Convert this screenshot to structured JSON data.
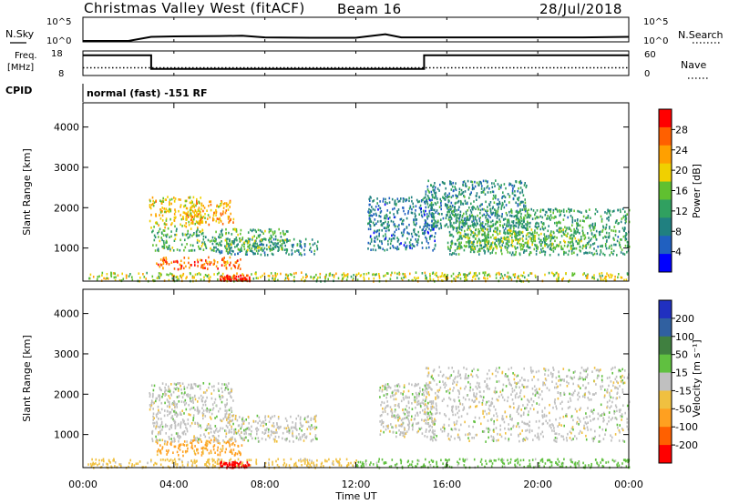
{
  "header": {
    "station": "Christmas Valley West (fitACF)",
    "beam": "Beam 16",
    "date": "28/Jul/2018"
  },
  "labels": {
    "nsky": "N.Sky",
    "nsearch": "N.Search",
    "freq_line1": "Freq.",
    "freq_line2": "[MHz]",
    "nave": "Nave",
    "cpid": "CPID",
    "cpid_value": "normal (fast) -151 RF",
    "xlabel": "Time UT",
    "ylabel_top": "Slant Range [km]",
    "ylabel_bottom": "Slant Range [km]",
    "power_label": "Power [dB]",
    "velocity_label": "Velocity [m s⁻¹]"
  },
  "noise_axis": {
    "top": "10^5",
    "bottom": "10^0"
  },
  "freq_axis": {
    "left_ticks": [
      "18",
      "8"
    ],
    "right_ticks": [
      "60",
      "0"
    ]
  },
  "colors": {
    "power": [
      "#0000ff",
      "#2060c0",
      "#208080",
      "#30a060",
      "#60c030",
      "#f0d000",
      "#ffa000",
      "#ff6000",
      "#ff0000"
    ],
    "velocity": [
      "#2030c0",
      "#3060a0",
      "#408040",
      "#60c040",
      "#c0c0c0",
      "#f0c040",
      "#ffa020",
      "#ff6000",
      "#ff0000"
    ]
  },
  "chart_data": [
    {
      "type": "line",
      "name": "noise",
      "x": [
        0,
        2,
        3,
        4,
        6,
        7,
        8,
        10,
        12,
        13.3,
        14,
        16,
        18,
        20,
        22,
        24
      ],
      "series": [
        {
          "name": "N.Sky",
          "values": [
            1,
            1,
            8,
            10,
            12,
            14,
            6,
            5,
            5,
            30,
            6,
            6,
            6,
            6,
            6,
            8
          ]
        }
      ]
    },
    {
      "type": "line",
      "name": "frequency",
      "x": [
        0,
        3.0,
        3.0,
        15.0,
        15.0,
        24
      ],
      "series": [
        {
          "name": "Freq.",
          "values": [
            16.5,
            16.5,
            10.5,
            10.5,
            16.5,
            16.5
          ]
        },
        {
          "name": "Nave",
          "values": [
            18,
            18,
            18,
            18,
            18,
            18
          ]
        }
      ]
    },
    {
      "type": "heatmap",
      "name": "power",
      "xlabel": "Time UT",
      "ylabel": "Slant Range [km]",
      "x_ticks": [
        "00:00",
        "04:00",
        "08:00",
        "12:00",
        "16:00",
        "20:00",
        "00:00"
      ],
      "xlim": [
        0,
        24
      ],
      "ylim": [
        180,
        4600
      ],
      "y_ticks": [
        1000,
        2000,
        3000,
        4000
      ],
      "colorbar": {
        "label": "Power [dB]",
        "ticks": [
          4,
          8,
          12,
          16,
          20,
          24,
          28
        ],
        "range": [
          0,
          32
        ]
      },
      "regions": [
        {
          "t0": 2.9,
          "t1": 5.2,
          "r0": 1500,
          "r1": 2300,
          "level": 20
        },
        {
          "t0": 4.5,
          "t1": 6.6,
          "r0": 1600,
          "r1": 2200,
          "level": 22
        },
        {
          "t0": 3.2,
          "t1": 7.0,
          "r0": 500,
          "r1": 800,
          "level": 26
        },
        {
          "t0": 5.8,
          "t1": 10.3,
          "r0": 850,
          "r1": 1250,
          "level": 10
        },
        {
          "t0": 3.0,
          "t1": 9.0,
          "r0": 950,
          "r1": 1500,
          "level": 14
        },
        {
          "t0": 0.2,
          "t1": 24,
          "r0": 200,
          "r1": 420,
          "level": 18
        },
        {
          "t0": 6.0,
          "t1": 7.3,
          "r0": 200,
          "r1": 350,
          "level": 30
        },
        {
          "t0": 12.5,
          "t1": 15.5,
          "r0": 950,
          "r1": 2300,
          "level": 8
        },
        {
          "t0": 15.0,
          "t1": 19.5,
          "r0": 1500,
          "r1": 2700,
          "level": 10
        },
        {
          "t0": 16.0,
          "t1": 24,
          "r0": 850,
          "r1": 2000,
          "level": 12
        },
        {
          "t0": 16.5,
          "t1": 22.0,
          "r0": 1000,
          "r1": 1500,
          "level": 16
        }
      ]
    },
    {
      "type": "heatmap",
      "name": "velocity",
      "xlabel": "Time UT",
      "ylabel": "Slant Range [km]",
      "x_ticks": [
        "00:00",
        "04:00",
        "08:00",
        "12:00",
        "16:00",
        "20:00",
        "00:00"
      ],
      "xlim": [
        0,
        24
      ],
      "ylim": [
        180,
        4600
      ],
      "y_ticks": [
        1000,
        2000,
        3000,
        4000
      ],
      "colorbar": {
        "label": "Velocity [m s⁻¹]",
        "ticks": [
          200,
          100,
          50,
          15,
          -15,
          -50,
          -100,
          -200
        ]
      },
      "regions": [
        {
          "t0": 2.9,
          "t1": 6.6,
          "r0": 1500,
          "r1": 2300,
          "level": 0
        },
        {
          "t0": 3.2,
          "t1": 7.0,
          "r0": 500,
          "r1": 900,
          "level": -60
        },
        {
          "t0": 3.0,
          "t1": 10.3,
          "r0": 850,
          "r1": 1500,
          "level": 0
        },
        {
          "t0": 0.2,
          "t1": 12.0,
          "r0": 200,
          "r1": 420,
          "level": -30
        },
        {
          "t0": 12.0,
          "t1": 24,
          "r0": 200,
          "r1": 420,
          "level": 30
        },
        {
          "t0": 6.0,
          "t1": 7.3,
          "r0": 200,
          "r1": 350,
          "level": -250
        },
        {
          "t0": 13.0,
          "t1": 15.5,
          "r0": 950,
          "r1": 2300,
          "level": 0
        },
        {
          "t0": 15.0,
          "t1": 24,
          "r0": 850,
          "r1": 2700,
          "level": 0
        }
      ]
    }
  ]
}
